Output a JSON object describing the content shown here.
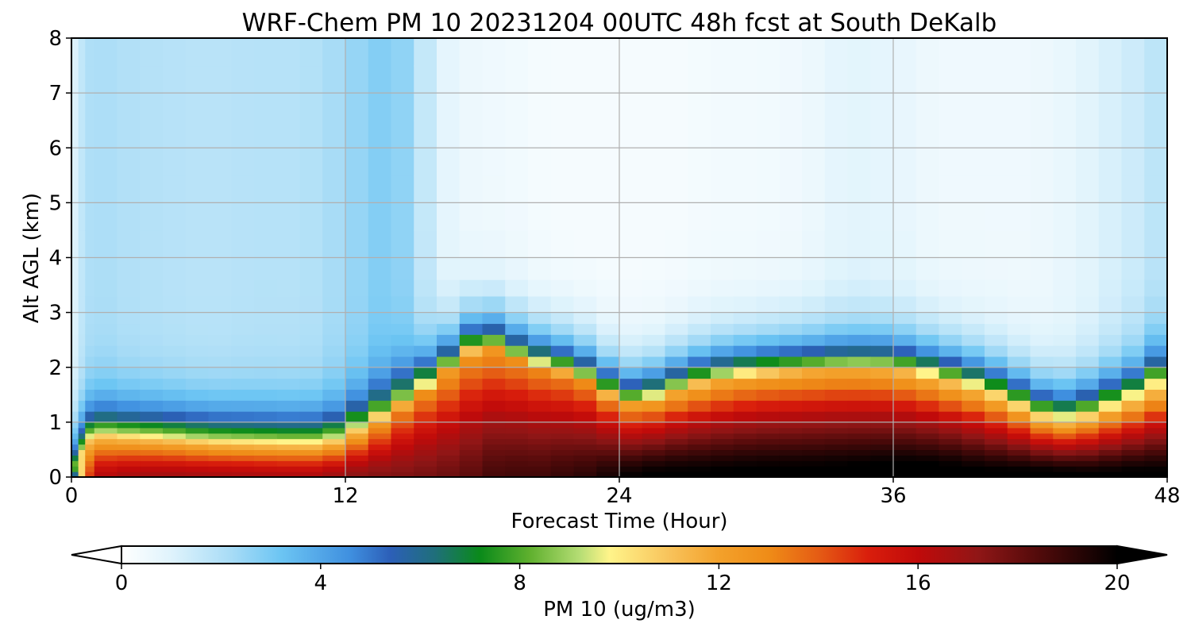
{
  "chart_data": {
    "type": "heatmap",
    "title": "WRF-Chem PM 10  20231204 00UTC 48h fcst at South DeKalb",
    "xlabel": "Forecast Time (Hour)",
    "ylabel": "Alt AGL (km)",
    "xlim": [
      0,
      48
    ],
    "ylim": [
      0,
      8
    ],
    "xticks": [
      0,
      12,
      24,
      36,
      48
    ],
    "xtick_labels": [
      "0",
      "12",
      "24",
      "36",
      "48"
    ],
    "yticks": [
      0,
      1,
      2,
      3,
      4,
      5,
      6,
      7,
      8
    ],
    "ytick_labels": [
      "0",
      "1",
      "2",
      "3",
      "4",
      "5",
      "6",
      "7",
      "8"
    ],
    "grid": true,
    "x": [
      0,
      0.3,
      0.6,
      1,
      2,
      3,
      4,
      5,
      6,
      7,
      8,
      9,
      10,
      11,
      12,
      13,
      14,
      15,
      16,
      17,
      18,
      19,
      20,
      21,
      22,
      23,
      24,
      25,
      26,
      27,
      28,
      29,
      30,
      31,
      32,
      33,
      34,
      35,
      36,
      37,
      38,
      39,
      40,
      41,
      42,
      43,
      44,
      45,
      46,
      47,
      48
    ],
    "y": [
      0,
      0.1,
      0.2,
      0.3,
      0.4,
      0.5,
      0.6,
      0.7,
      0.8,
      0.9,
      1.0,
      1.2,
      1.4,
      1.6,
      1.8,
      2.0,
      2.2,
      2.4,
      2.6,
      2.8,
      3.0,
      3.3,
      3.6,
      4.0,
      4.5,
      5.0,
      5.5,
      6.0,
      6.5,
      7.0,
      7.5,
      8.0
    ],
    "model": {
      "profile_knots_hour": [
        0,
        0.3,
        0.6,
        1,
        2,
        4,
        6,
        8,
        10,
        11,
        12,
        13,
        14,
        15,
        16,
        17,
        18,
        19,
        20,
        21,
        22,
        23,
        24,
        25,
        26,
        28,
        30,
        32,
        34,
        36,
        38,
        40,
        42,
        43,
        44,
        45,
        46,
        47,
        48
      ],
      "mix_height_km": [
        0.1,
        0.3,
        0.6,
        0.75,
        0.72,
        0.68,
        0.62,
        0.6,
        0.58,
        0.6,
        0.72,
        0.95,
        1.1,
        1.4,
        1.7,
        2.1,
        2.4,
        2.2,
        2.0,
        1.9,
        1.8,
        1.6,
        1.3,
        1.3,
        1.5,
        1.75,
        1.85,
        1.9,
        1.95,
        1.95,
        1.8,
        1.6,
        1.3,
        1.15,
        1.2,
        1.3,
        1.45,
        1.55,
        2.1
      ],
      "surface_peak": [
        3,
        8,
        13,
        16,
        16.6,
        16.8,
        16.7,
        16.6,
        16.5,
        16.5,
        17.2,
        17.4,
        17.5,
        17.6,
        17.8,
        18.0,
        18.4,
        18.9,
        18.6,
        18.9,
        19.0,
        19.3,
        19.8,
        20.1,
        20.2,
        20.2,
        20.3,
        20.3,
        20.4,
        20.6,
        20.6,
        20.3,
        20.4,
        20.5,
        20.3,
        20.2,
        20.3,
        20.3,
        20.2
      ],
      "top_of_layer": [
        8,
        10,
        10.8,
        11,
        11,
        11,
        11,
        11,
        11,
        10.8,
        10.6,
        11.5,
        12.5,
        13,
        12.5,
        12.4,
        12.3,
        12.8,
        13.0,
        13.0,
        13.1,
        13.0,
        12.5,
        12,
        11.5,
        11.5,
        11.8,
        11.8,
        11.8,
        11.5,
        11.0,
        10.6,
        9.5,
        8.5,
        8.6,
        9.0,
        9.5,
        10.0,
        7.8
      ],
      "aloft_background": [
        0.7,
        1.4,
        1.9,
        2.2,
        2.0,
        1.9,
        1.8,
        1.9,
        1.9,
        2.0,
        2.4,
        2.6,
        3.0,
        2.2,
        1.0,
        0.6,
        0.5,
        0.5,
        0.4,
        0.3,
        0.3,
        0.3,
        0.3,
        0.3,
        0.3,
        0.4,
        0.4,
        0.5,
        0.9,
        0.8,
        0.5,
        0.5,
        0.5,
        0.6,
        0.8,
        1.0,
        1.3,
        1.5,
        2.0
      ]
    },
    "colorbar": {
      "label": "PM 10  (ug/m3)",
      "min": 0,
      "max": 20,
      "ticks": [
        0,
        4,
        8,
        12,
        16,
        20
      ],
      "tick_labels": [
        "0",
        "4",
        "8",
        "12",
        "16",
        "20"
      ],
      "extend": "both",
      "stops": [
        {
          "v": 0.0,
          "c": "#ffffff"
        },
        {
          "v": 1.0,
          "c": "#dff3fc"
        },
        {
          "v": 2.2,
          "c": "#a8dcf6"
        },
        {
          "v": 3.2,
          "c": "#6cc5f3"
        },
        {
          "v": 4.6,
          "c": "#3f8fdf"
        },
        {
          "v": 5.4,
          "c": "#2c5fb8"
        },
        {
          "v": 6.3,
          "c": "#1f6f7a"
        },
        {
          "v": 7.2,
          "c": "#0a8a1a"
        },
        {
          "v": 8.2,
          "c": "#5fb02e"
        },
        {
          "v": 9.2,
          "c": "#b5dd74"
        },
        {
          "v": 9.8,
          "c": "#fff48a"
        },
        {
          "v": 11.0,
          "c": "#f8c35b"
        },
        {
          "v": 12.0,
          "c": "#f3a12b"
        },
        {
          "v": 13.0,
          "c": "#ef8c17"
        },
        {
          "v": 14.0,
          "c": "#e55c14"
        },
        {
          "v": 15.0,
          "c": "#d91e0c"
        },
        {
          "v": 16.0,
          "c": "#c00a0a"
        },
        {
          "v": 17.2,
          "c": "#901616"
        },
        {
          "v": 18.5,
          "c": "#4e0a0a"
        },
        {
          "v": 20.0,
          "c": "#000000"
        }
      ],
      "under_color": "#ffffff",
      "over_color": "#000000"
    }
  }
}
